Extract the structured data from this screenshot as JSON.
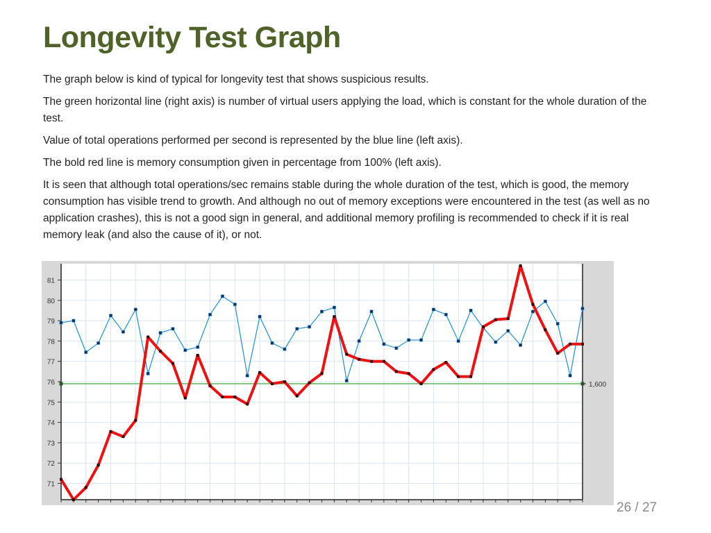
{
  "slide": {
    "title": "Longevity Test Graph",
    "paragraphs": [
      "The graph below is kind of typical for longevity test that shows suspicious results.",
      "The green horizontal line (right axis) is number of virtual users applying the load, which is constant for the whole duration of the test.",
      "Value of total operations performed per second is represented by the blue line (left axis).",
      "The bold red line is memory consumption given in percentage from 100% (left axis).",
      "It is seen that although total operations/sec remains stable during the whole duration of the test, which is good, the memory consumption has visible trend to growth. And although no out of memory exceptions were encountered in the test (as well as no application crashes), this is not a good sign in general, and additional memory profiling is recommended to check if it is real memory leak (and also the cause of it), or not."
    ],
    "page_number": "26 / 27"
  },
  "chart_data": {
    "type": "line",
    "title": "",
    "xlabel": "",
    "ylabel": "",
    "ylim": [
      70.2,
      81.8
    ],
    "yticks": [
      "71",
      "72",
      "73",
      "74",
      "75",
      "76",
      "77",
      "78",
      "79",
      "80",
      "81"
    ],
    "grid": true,
    "legend": "none",
    "series": [
      {
        "color": "#1e8fd9",
        "style": "thin",
        "values": [
          78.9,
          79.0,
          77.45,
          77.9,
          79.25,
          78.45,
          79.55,
          76.4,
          78.4,
          78.6,
          77.55,
          77.7,
          79.3,
          80.2,
          79.8,
          76.3,
          79.2,
          77.9,
          77.6,
          78.6,
          78.7,
          79.45,
          79.65,
          76.05,
          78.0,
          79.45,
          77.85,
          77.65,
          78.05,
          78.05,
          79.55,
          79.3,
          78.0,
          79.5,
          78.65,
          77.95,
          78.5,
          77.8,
          79.45,
          79.95,
          78.85,
          76.3,
          79.6
        ]
      },
      {
        "color": "#ee1111",
        "style": "bold",
        "values": [
          71.2,
          70.2,
          70.8,
          71.9,
          73.55,
          73.3,
          74.1,
          78.2,
          77.5,
          76.9,
          75.2,
          77.3,
          75.8,
          75.25,
          75.25,
          74.9,
          76.45,
          75.9,
          76.0,
          75.3,
          75.95,
          76.4,
          79.2,
          77.35,
          77.1,
          77.0,
          77.0,
          76.5,
          76.4,
          75.9,
          76.6,
          76.95,
          76.25,
          76.25,
          78.7,
          79.05,
          79.1,
          81.7,
          79.8,
          78.55,
          77.4,
          77.85,
          77.85
        ]
      },
      {
        "color": "#5cb85c",
        "style": "flat",
        "axis": "right",
        "value_label": "1,600",
        "level_on_left_scale": 75.9
      }
    ]
  }
}
